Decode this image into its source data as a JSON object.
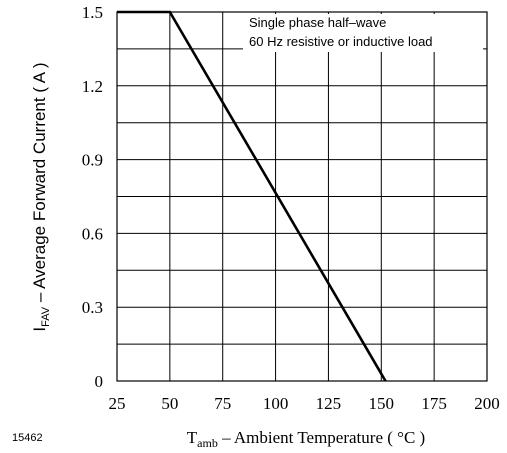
{
  "figure_number": "15462",
  "chart_data": {
    "type": "line",
    "title": "",
    "xlabel": {
      "main": "T",
      "sub": "amb",
      "rest": " – Ambient Temperature ( °C )"
    },
    "ylabel": {
      "main": "I",
      "sub": "FAV",
      "rest": " – Average Forward Current ( A )"
    },
    "xlim": [
      25,
      200
    ],
    "ylim": [
      0,
      1.5
    ],
    "x_ticks": [
      25,
      50,
      75,
      100,
      125,
      150,
      175,
      200
    ],
    "x_tick_labels": [
      "25",
      "50",
      "75",
      "100",
      "125",
      "150",
      "175",
      "200"
    ],
    "y_ticks": [
      0,
      0.3,
      0.6,
      0.9,
      1.2,
      1.5
    ],
    "y_tick_labels": [
      "0",
      "0.3",
      "0.6",
      "0.9",
      "1.2",
      "1.5"
    ],
    "grid": true,
    "y_grid_step": 0.15,
    "annotation": [
      "Single phase half–wave",
      "60 Hz resistive or inductive load"
    ],
    "series": [
      {
        "x": [
          25,
          50,
          152
        ],
        "y": [
          1.5,
          1.5,
          0
        ]
      }
    ]
  }
}
